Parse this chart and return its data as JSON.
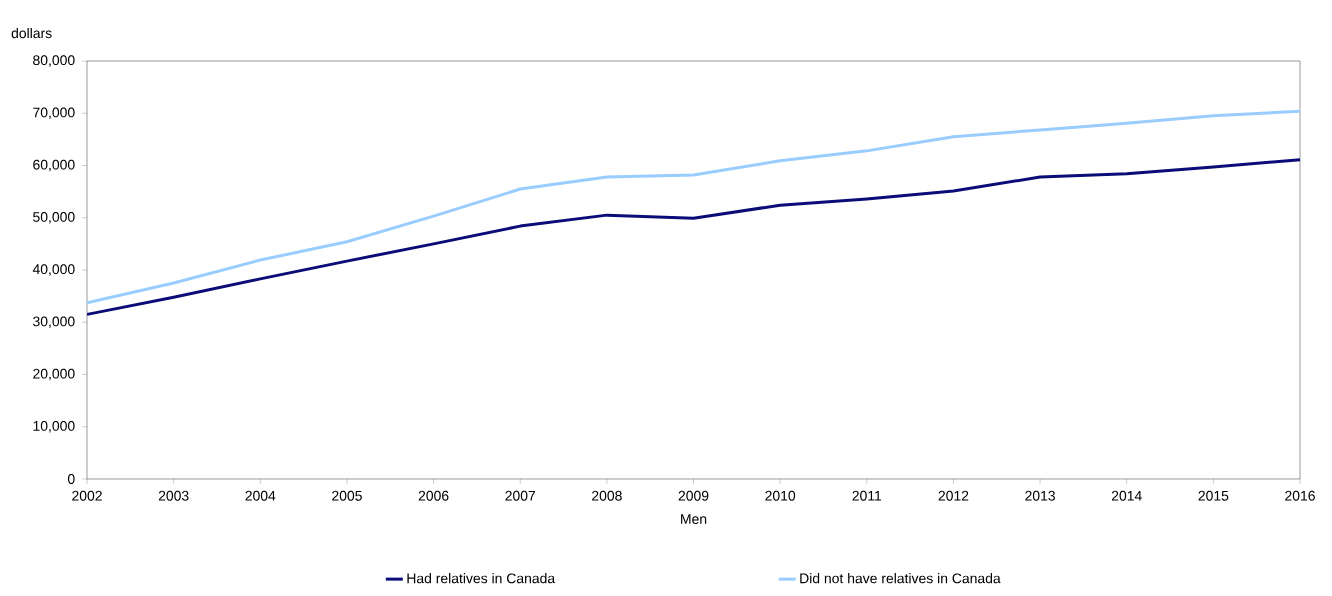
{
  "chart_data": {
    "type": "line",
    "xlabel": "Men",
    "ylabel": "dollars",
    "categories": [
      "2002",
      "2003",
      "2004",
      "2005",
      "2006",
      "2007",
      "2008",
      "2009",
      "2010",
      "2011",
      "2012",
      "2013",
      "2014",
      "2015",
      "2016"
    ],
    "series": [
      {
        "name": "Had relatives in Canada",
        "color": "#0c0c78",
        "values": [
          31500,
          34800,
          38300,
          41700,
          45000,
          48400,
          50500,
          49900,
          52400,
          53600,
          55100,
          57800,
          58400,
          59700,
          61100
        ]
      },
      {
        "name": "Did not have relatives in Canada",
        "color": "#99ccff",
        "values": [
          33700,
          37500,
          41900,
          45400,
          50300,
          55500,
          57800,
          58200,
          60900,
          62800,
          65500,
          66800,
          68100,
          69500,
          70400
        ]
      }
    ],
    "ylim": [
      0,
      80000
    ],
    "yticks": [
      0,
      {
        "value": 10000,
        "label": "10,000"
      },
      {
        "value": 20000,
        "label": "20,000"
      },
      {
        "value": 30000,
        "label": "30,000"
      },
      {
        "value": 40000,
        "label": "40,000"
      },
      {
        "value": 50000,
        "label": "50,000"
      },
      {
        "value": 60000,
        "label": "60,000"
      },
      {
        "value": 70000,
        "label": "70,000"
      },
      {
        "value": 80000,
        "label": "80,000"
      }
    ],
    "grid": false,
    "legend": "bottom"
  }
}
